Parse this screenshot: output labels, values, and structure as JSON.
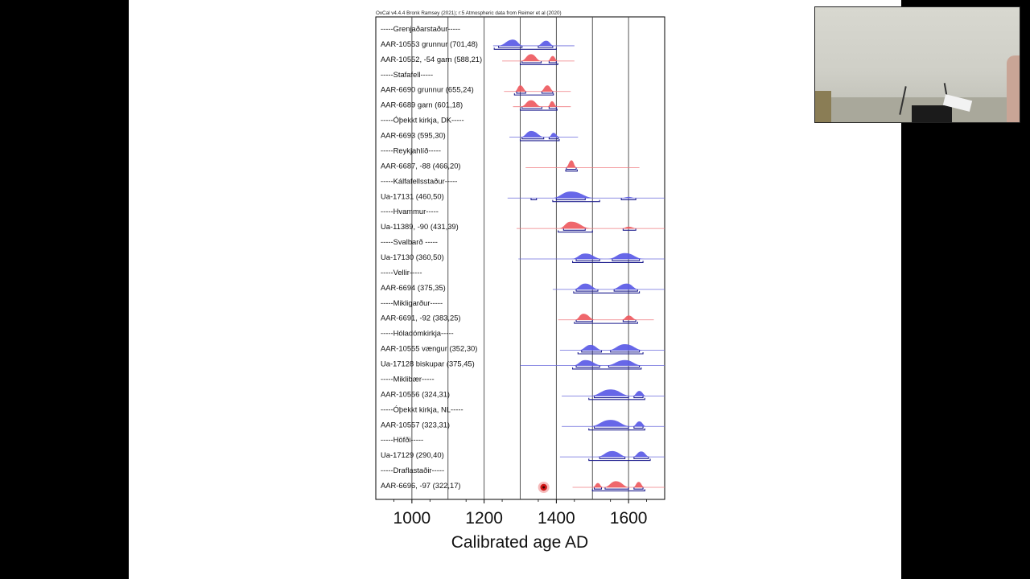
{
  "chart_data": {
    "type": "range-plot",
    "header": "OxCal v4.4.4 Bronk Ramsey (2021); r:5 Atmospheric data from Reimer et al (2020)",
    "xlabel": "Calibrated age AD",
    "xlim": [
      900,
      1700
    ],
    "x_ticks": [
      1000,
      1200,
      1400,
      1600
    ],
    "x_tick_labels": [
      "1000",
      "1200",
      "1400",
      "1600"
    ],
    "grid_lines": [
      1000,
      1100,
      1200,
      1300,
      1400,
      1500,
      1600
    ],
    "colors": {
      "blue": "#5a5ae6",
      "red": "#ee5a60",
      "blue_line": "#6b6bdc",
      "red_line": "#ef7b80",
      "bracket": "#1f1f8f"
    },
    "rows": [
      {
        "kind": "group",
        "label": "-----Grenjaðarstaður-----"
      },
      {
        "kind": "sample",
        "label": "AAR-10553 grunnur (701,48)",
        "color": "blue",
        "span": [
          1225,
          1450
        ],
        "peaks": [
          {
            "from": 1236,
            "to": 1310,
            "center": 1280,
            "height": 0.85
          },
          {
            "from": 1345,
            "to": 1395,
            "center": 1372,
            "height": 0.7
          }
        ],
        "ranges": [
          [
            1240,
            1305
          ],
          [
            1350,
            1390
          ]
        ],
        "outer": [
          1228,
          1400
        ]
      },
      {
        "kind": "sample",
        "label": "AAR-10552, -54 garn (588,21)",
        "color": "red",
        "span": [
          1250,
          1450
        ],
        "peaks": [
          {
            "from": 1300,
            "to": 1360,
            "center": 1330,
            "height": 0.95
          },
          {
            "from": 1375,
            "to": 1405,
            "center": 1390,
            "height": 0.7
          }
        ],
        "ranges": [
          [
            1305,
            1358
          ],
          [
            1380,
            1400
          ]
        ],
        "outer": [
          1300,
          1404
        ]
      },
      {
        "kind": "group",
        "label": "-----Stafafell-----"
      },
      {
        "kind": "sample",
        "label": "AAR-6690 grunnur (655,24)",
        "color": "red",
        "span": [
          1255,
          1440
        ],
        "peaks": [
          {
            "from": 1284,
            "to": 1320,
            "center": 1300,
            "height": 0.85
          },
          {
            "from": 1355,
            "to": 1395,
            "center": 1375,
            "height": 0.85
          }
        ],
        "ranges": [
          [
            1290,
            1315
          ],
          [
            1360,
            1390
          ]
        ],
        "outer": [
          1284,
          1392
        ]
      },
      {
        "kind": "sample",
        "label": "AAR-6689 garn (601,18)",
        "color": "red",
        "span": [
          1280,
          1440
        ],
        "peaks": [
          {
            "from": 1300,
            "to": 1360,
            "center": 1330,
            "height": 0.9
          },
          {
            "from": 1375,
            "to": 1403,
            "center": 1388,
            "height": 0.75
          }
        ],
        "ranges": [
          [
            1305,
            1360
          ],
          [
            1380,
            1400
          ]
        ],
        "outer": [
          1300,
          1402
        ]
      },
      {
        "kind": "group",
        "label": "-----Óþekkt kirkja, DK-----"
      },
      {
        "kind": "sample",
        "label": "AAR-6693 (595,30)",
        "color": "blue",
        "span": [
          1270,
          1460
        ],
        "peaks": [
          {
            "from": 1300,
            "to": 1370,
            "center": 1330,
            "height": 0.85
          },
          {
            "from": 1378,
            "to": 1410,
            "center": 1392,
            "height": 0.6
          }
        ],
        "ranges": [
          [
            1305,
            1365
          ],
          [
            1380,
            1405
          ]
        ],
        "outer": [
          1300,
          1408
        ]
      },
      {
        "kind": "group",
        "label": "-----Reykjahlíð-----"
      },
      {
        "kind": "sample",
        "label": "AAR-6687, -88 (466,20)",
        "color": "red",
        "span": [
          1315,
          1630
        ],
        "peaks": [
          {
            "from": 1425,
            "to": 1457,
            "center": 1442,
            "height": 1.0
          }
        ],
        "ranges": [
          [
            1428,
            1455
          ]
        ],
        "outer": [
          1426,
          1458
        ]
      },
      {
        "kind": "group",
        "label": "-----Kálfafellsstaður-----"
      },
      {
        "kind": "sample",
        "label": "Ua-17131 (460,50)",
        "color": "blue",
        "span": [
          1265,
          1700
        ],
        "peaks": [
          {
            "from": 1385,
            "to": 1510,
            "center": 1440,
            "height": 0.9
          },
          {
            "from": 1580,
            "to": 1620,
            "center": 1600,
            "height": 0.15
          }
        ],
        "ranges": [
          [
            1330,
            1345
          ],
          [
            1400,
            1480
          ],
          [
            1580,
            1620
          ]
        ],
        "outer": [
          1390,
          1520
        ]
      },
      {
        "kind": "group",
        "label": "-----Hvammur-----"
      },
      {
        "kind": "sample",
        "label": "Ua-11389, -90 (431,39)",
        "color": "red",
        "span": [
          1290,
          1700
        ],
        "peaks": [
          {
            "from": 1405,
            "to": 1500,
            "center": 1440,
            "height": 0.95
          },
          {
            "from": 1580,
            "to": 1625,
            "center": 1600,
            "height": 0.25
          }
        ],
        "ranges": [
          [
            1420,
            1480
          ],
          [
            1585,
            1620
          ]
        ],
        "outer": [
          1405,
          1500
        ]
      },
      {
        "kind": "group",
        "label": "-----Svalbarð -----"
      },
      {
        "kind": "sample",
        "label": "Ua-17130 (360,50)",
        "color": "blue",
        "span": [
          1295,
          1700
        ],
        "peaks": [
          {
            "from": 1440,
            "to": 1530,
            "center": 1480,
            "height": 0.75
          },
          {
            "from": 1540,
            "to": 1645,
            "center": 1590,
            "height": 0.8
          }
        ],
        "ranges": [
          [
            1455,
            1520
          ],
          [
            1555,
            1630
          ]
        ],
        "outer": [
          1445,
          1640
        ]
      },
      {
        "kind": "group",
        "label": "-----Vellir-----"
      },
      {
        "kind": "sample",
        "label": "AAR-6694 (375,35)",
        "color": "blue",
        "span": [
          1390,
          1700
        ],
        "peaks": [
          {
            "from": 1445,
            "to": 1520,
            "center": 1480,
            "height": 0.8
          },
          {
            "from": 1550,
            "to": 1630,
            "center": 1595,
            "height": 0.8
          }
        ],
        "ranges": [
          [
            1455,
            1515
          ],
          [
            1560,
            1625
          ]
        ],
        "outer": [
          1448,
          1630
        ]
      },
      {
        "kind": "group",
        "label": "-----Mikligarður-----"
      },
      {
        "kind": "sample",
        "label": "AAR-6691, -92 (383,25)",
        "color": "red",
        "span": [
          1405,
          1670
        ],
        "peaks": [
          {
            "from": 1450,
            "to": 1510,
            "center": 1475,
            "height": 0.85
          },
          {
            "from": 1580,
            "to": 1625,
            "center": 1600,
            "height": 0.6
          }
        ],
        "ranges": [
          [
            1455,
            1500
          ],
          [
            1585,
            1620
          ]
        ],
        "outer": [
          1450,
          1625
        ]
      },
      {
        "kind": "group",
        "label": "-----Hóladómkirkja-----"
      },
      {
        "kind": "sample",
        "label": "AAR-10555 vængur (352,30)",
        "color": "blue",
        "span": [
          1410,
          1700
        ],
        "peaks": [
          {
            "from": 1460,
            "to": 1530,
            "center": 1495,
            "height": 0.75
          },
          {
            "from": 1540,
            "to": 1645,
            "center": 1590,
            "height": 0.85
          }
        ],
        "ranges": [
          [
            1470,
            1525
          ],
          [
            1550,
            1630
          ]
        ],
        "outer": [
          1460,
          1640
        ]
      },
      {
        "kind": "sample",
        "label": "Ua-17128 biskupar (375,45)",
        "color": "blue",
        "span": [
          1300,
          1700
        ],
        "peaks": [
          {
            "from": 1445,
            "to": 1530,
            "center": 1480,
            "height": 0.75
          },
          {
            "from": 1535,
            "to": 1640,
            "center": 1590,
            "height": 0.75
          }
        ],
        "ranges": [
          [
            1455,
            1520
          ],
          [
            1545,
            1630
          ]
        ],
        "outer": [
          1445,
          1635
        ]
      },
      {
        "kind": "group",
        "label": "-----Miklibær-----"
      },
      {
        "kind": "sample",
        "label": "AAR-10556 (324,31)",
        "color": "blue",
        "span": [
          1415,
          1700
        ],
        "peaks": [
          {
            "from": 1490,
            "to": 1610,
            "center": 1550,
            "height": 0.9
          },
          {
            "from": 1610,
            "to": 1650,
            "center": 1630,
            "height": 0.7
          }
        ],
        "ranges": [
          [
            1505,
            1600
          ],
          [
            1615,
            1640
          ]
        ],
        "outer": [
          1490,
          1645
        ]
      },
      {
        "kind": "group",
        "label": "-----Óþekkt kirkja, NL-----"
      },
      {
        "kind": "sample",
        "label": "AAR-10557 (323,31)",
        "color": "blue",
        "span": [
          1415,
          1700
        ],
        "peaks": [
          {
            "from": 1490,
            "to": 1610,
            "center": 1550,
            "height": 0.9
          },
          {
            "from": 1610,
            "to": 1650,
            "center": 1630,
            "height": 0.7
          }
        ],
        "ranges": [
          [
            1505,
            1600
          ],
          [
            1615,
            1640
          ]
        ],
        "outer": [
          1490,
          1645
        ]
      },
      {
        "kind": "group",
        "label": "-----Höfði-----"
      },
      {
        "kind": "sample",
        "label": "Ua-17129 (290,40)",
        "color": "blue",
        "span": [
          1410,
          1700
        ],
        "peaks": [
          {
            "from": 1510,
            "to": 1600,
            "center": 1555,
            "height": 0.8
          },
          {
            "from": 1610,
            "to": 1660,
            "center": 1635,
            "height": 0.75
          }
        ],
        "ranges": [
          [
            1520,
            1590
          ],
          [
            1615,
            1655
          ]
        ],
        "outer": [
          1490,
          1660
        ]
      },
      {
        "kind": "group",
        "label": "-----Draflastaðir-----"
      },
      {
        "kind": "sample",
        "label": "AAR-6696, -97 (322,17)",
        "color": "red",
        "span": [
          1445,
          1700
        ],
        "peaks": [
          {
            "from": 1500,
            "to": 1530,
            "center": 1515,
            "height": 0.6
          },
          {
            "from": 1530,
            "to": 1605,
            "center": 1565,
            "height": 0.85
          },
          {
            "from": 1612,
            "to": 1645,
            "center": 1628,
            "height": 0.75
          }
        ],
        "ranges": [
          [
            1505,
            1525
          ],
          [
            1535,
            1600
          ],
          [
            1615,
            1640
          ]
        ],
        "outer": [
          1500,
          1645
        ]
      }
    ],
    "pointer": {
      "x": 1365,
      "row": "AAR-6696, -97 (322,17)"
    }
  }
}
